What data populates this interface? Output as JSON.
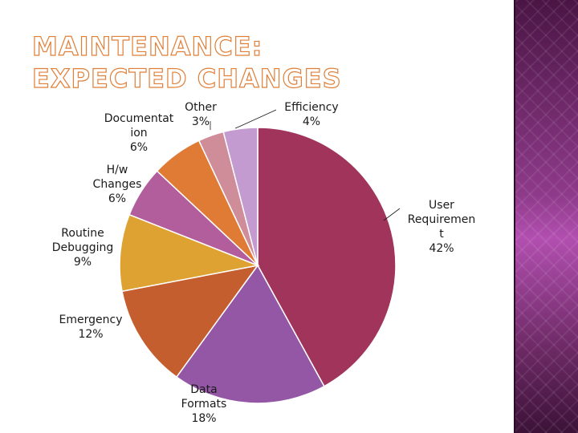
{
  "slide": {
    "title_line1": "MAINTENANCE:",
    "title_line2": "EXPECTED CHANGES"
  },
  "colors": {
    "title_outline": "#e07f38",
    "side_band": "#8e3a8a"
  },
  "chart_data": {
    "type": "pie",
    "unit": "%",
    "start": "12 o'clock",
    "direction": "clockwise",
    "slices": [
      {
        "label_lines": [
          "User",
          "Requiremen",
          "t"
        ],
        "value": 42,
        "pct_text": "42%",
        "color": "#a0345a"
      },
      {
        "label_lines": [
          "Data",
          "Formats"
        ],
        "value": 18,
        "pct_text": "18%",
        "color": "#9457a6"
      },
      {
        "label_lines": [
          "Emergency"
        ],
        "value": 12,
        "pct_text": "12%",
        "color": "#c45e2e"
      },
      {
        "label_lines": [
          "Routine",
          "Debugging"
        ],
        "value": 9,
        "pct_text": "9%",
        "color": "#dda232"
      },
      {
        "label_lines": [
          "H/w",
          "Changes"
        ],
        "value": 6,
        "pct_text": "6%",
        "color": "#b35e9c"
      },
      {
        "label_lines": [
          "Documentat",
          "ion"
        ],
        "value": 6,
        "pct_text": "6%",
        "color": "#e07b35"
      },
      {
        "label_lines": [
          "Other"
        ],
        "value": 3,
        "pct_text": "3%",
        "color": "#cf8d9a"
      },
      {
        "label_lines": [
          "Efficiency"
        ],
        "value": 4,
        "pct_text": "4%",
        "color": "#c49bd0"
      }
    ]
  }
}
